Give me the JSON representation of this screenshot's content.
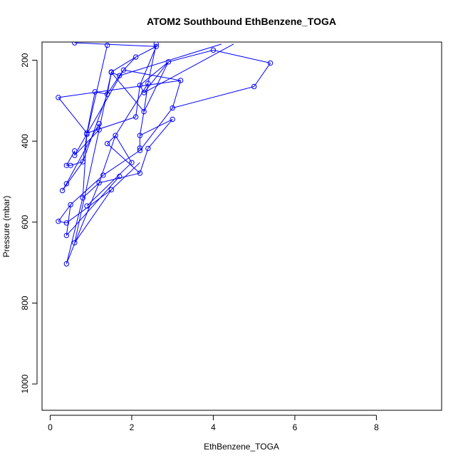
{
  "chart_data": {
    "type": "scatter",
    "title": "ATOM2 Southbound EthBenzene_TOGA",
    "xlabel": "EthBenzene_TOGA",
    "ylabel": "Pressure (mbar)",
    "xlim": [
      -0.2,
      9.6
    ],
    "ylim": [
      1065,
      155
    ],
    "y_reversed": true,
    "xticks": [
      0,
      2,
      4,
      6,
      8
    ],
    "yticks": [
      200,
      400,
      600,
      800,
      1000
    ],
    "grid": false,
    "legend": "none",
    "series_color": "#0000ff",
    "marker": "open-circle",
    "points": [
      [
        0.4,
        703
      ],
      [
        0.6,
        651
      ],
      [
        0.8,
        540
      ],
      [
        1.2,
        503
      ],
      [
        1.5,
        520
      ],
      [
        1.7,
        487
      ],
      [
        2.2,
        479
      ],
      [
        0.9,
        560
      ],
      [
        1.3,
        484
      ],
      [
        2.0,
        453
      ],
      [
        2.2,
        423
      ],
      [
        2.2,
        417
      ],
      [
        2.4,
        418
      ],
      [
        3.0,
        346
      ],
      [
        3.0,
        318
      ],
      [
        3.2,
        250
      ],
      [
        0.2,
        292
      ],
      [
        0.9,
        380
      ],
      [
        1.1,
        278
      ],
      [
        1.4,
        284
      ],
      [
        1.5,
        230
      ],
      [
        1.7,
        238
      ],
      [
        1.8,
        224
      ],
      [
        2.3,
        327
      ],
      [
        2.2,
        262
      ],
      [
        2.3,
        280
      ],
      [
        2.4,
        257
      ],
      [
        2.9,
        204
      ],
      [
        4.0,
        175
      ],
      [
        5.4,
        207
      ],
      [
        5.0,
        265
      ],
      [
        1.6,
        386
      ],
      [
        1.4,
        406
      ],
      [
        0.3,
        522
      ],
      [
        0.4,
        505
      ],
      [
        0.4,
        460
      ],
      [
        0.5,
        460
      ],
      [
        0.6,
        435
      ],
      [
        0.6,
        424
      ],
      [
        0.8,
        451
      ],
      [
        1.2,
        357
      ],
      [
        1.2,
        372
      ],
      [
        0.9,
        383
      ],
      [
        0.5,
        557
      ],
      [
        0.2,
        598
      ],
      [
        0.4,
        602
      ],
      [
        0.4,
        633
      ],
      [
        2.1,
        340
      ],
      [
        2.1,
        192
      ],
      [
        2.2,
        386
      ],
      [
        1.4,
        163
      ],
      [
        0.6,
        157
      ],
      [
        2.6,
        166
      ],
      [
        2.6,
        160
      ],
      [
        1.5,
        229
      ]
    ],
    "segments": [
      [
        [
          0.4,
          703
        ],
        [
          0.8,
          540
        ]
      ],
      [
        [
          0.8,
          540
        ],
        [
          1.2,
          503
        ]
      ],
      [
        [
          1.2,
          503
        ],
        [
          2.2,
          479
        ]
      ],
      [
        [
          0.6,
          651
        ],
        [
          1.5,
          520
        ]
      ],
      [
        [
          1.5,
          520
        ],
        [
          2.2,
          453
        ]
      ],
      [
        [
          0.9,
          560
        ],
        [
          2.0,
          453
        ]
      ],
      [
        [
          1.3,
          484
        ],
        [
          2.2,
          423
        ]
      ],
      [
        [
          2.0,
          453
        ],
        [
          1.6,
          386
        ]
      ],
      [
        [
          1.6,
          386
        ],
        [
          1.4,
          406
        ]
      ],
      [
        [
          2.2,
          417
        ],
        [
          2.2,
          386
        ]
      ],
      [
        [
          2.2,
          386
        ],
        [
          2.3,
          327
        ]
      ],
      [
        [
          2.3,
          327
        ],
        [
          2.4,
          257
        ]
      ],
      [
        [
          2.4,
          418
        ],
        [
          3.0,
          346
        ]
      ],
      [
        [
          2.2,
          423
        ],
        [
          3.0,
          318
        ]
      ],
      [
        [
          3.0,
          318
        ],
        [
          3.2,
          250
        ]
      ],
      [
        [
          3.2,
          250
        ],
        [
          0.2,
          292
        ]
      ],
      [
        [
          0.2,
          292
        ],
        [
          0.9,
          380
        ]
      ],
      [
        [
          0.9,
          380
        ],
        [
          1.1,
          278
        ]
      ],
      [
        [
          1.1,
          278
        ],
        [
          1.4,
          284
        ]
      ],
      [
        [
          1.4,
          284
        ],
        [
          1.5,
          230
        ]
      ],
      [
        [
          1.5,
          230
        ],
        [
          1.7,
          238
        ]
      ],
      [
        [
          1.7,
          238
        ],
        [
          1.8,
          224
        ]
      ],
      [
        [
          1.8,
          224
        ],
        [
          2.1,
          192
        ]
      ],
      [
        [
          2.1,
          192
        ],
        [
          2.6,
          166
        ]
      ],
      [
        [
          2.6,
          166
        ],
        [
          2.6,
          160
        ]
      ],
      [
        [
          2.3,
          280
        ],
        [
          2.2,
          262
        ]
      ],
      [
        [
          2.2,
          262
        ],
        [
          2.9,
          204
        ]
      ],
      [
        [
          2.9,
          204
        ],
        [
          2.3,
          280
        ]
      ],
      [
        [
          2.3,
          327
        ],
        [
          2.9,
          204
        ]
      ],
      [
        [
          2.9,
          204
        ],
        [
          4.0,
          175
        ]
      ],
      [
        [
          4.0,
          175
        ],
        [
          5.4,
          207
        ]
      ],
      [
        [
          5.4,
          207
        ],
        [
          5.0,
          265
        ]
      ],
      [
        [
          5.0,
          265
        ],
        [
          3.0,
          318
        ]
      ],
      [
        [
          0.3,
          522
        ],
        [
          0.4,
          505
        ]
      ],
      [
        [
          0.4,
          505
        ],
        [
          1.2,
          357
        ]
      ],
      [
        [
          1.2,
          357
        ],
        [
          1.2,
          372
        ]
      ],
      [
        [
          1.2,
          372
        ],
        [
          0.6,
          435
        ]
      ],
      [
        [
          0.6,
          435
        ],
        [
          0.6,
          424
        ]
      ],
      [
        [
          0.6,
          424
        ],
        [
          0.4,
          460
        ]
      ],
      [
        [
          0.4,
          460
        ],
        [
          0.5,
          460
        ]
      ],
      [
        [
          0.5,
          460
        ],
        [
          0.8,
          451
        ]
      ],
      [
        [
          0.8,
          451
        ],
        [
          0.9,
          383
        ]
      ],
      [
        [
          0.9,
          383
        ],
        [
          1.4,
          163
        ]
      ],
      [
        [
          0.2,
          598
        ],
        [
          0.5,
          557
        ]
      ],
      [
        [
          0.5,
          557
        ],
        [
          1.3,
          484
        ]
      ],
      [
        [
          0.4,
          602
        ],
        [
          1.5,
          520
        ]
      ],
      [
        [
          0.4,
          633
        ],
        [
          1.7,
          487
        ]
      ],
      [
        [
          0.6,
          651
        ],
        [
          1.2,
          372
        ]
      ],
      [
        [
          1.2,
          372
        ],
        [
          1.5,
          229
        ]
      ],
      [
        [
          1.5,
          229
        ],
        [
          2.1,
          192
        ]
      ],
      [
        [
          0.8,
          540
        ],
        [
          0.9,
          380
        ]
      ],
      [
        [
          0.9,
          380
        ],
        [
          2.1,
          340
        ]
      ],
      [
        [
          2.1,
          340
        ],
        [
          2.2,
          262
        ]
      ],
      [
        [
          2.2,
          262
        ],
        [
          2.6,
          166
        ]
      ],
      [
        [
          2.6,
          166
        ],
        [
          0.6,
          157
        ]
      ],
      [
        [
          1.4,
          406
        ],
        [
          2.2,
          479
        ]
      ],
      [
        [
          2.2,
          386
        ],
        [
          3.0,
          346
        ]
      ],
      [
        [
          0.4,
          703
        ],
        [
          1.2,
          503
        ]
      ],
      [
        [
          1.2,
          503
        ],
        [
          1.6,
          386
        ]
      ],
      [
        [
          1.6,
          386
        ],
        [
          2.4,
          257
        ]
      ],
      [
        [
          2.4,
          257
        ],
        [
          2.6,
          160
        ]
      ],
      [
        [
          0.6,
          435
        ],
        [
          1.8,
          224
        ]
      ],
      [
        [
          1.8,
          224
        ],
        [
          3.2,
          250
        ]
      ],
      [
        [
          0.3,
          522
        ],
        [
          0.8,
          451
        ]
      ],
      [
        [
          0.8,
          451
        ],
        [
          1.4,
          284
        ]
      ],
      [
        [
          1.4,
          284
        ],
        [
          1.7,
          238
        ]
      ],
      [
        [
          1.7,
          238
        ],
        [
          4.2,
          160
        ]
      ],
      [
        [
          2.4,
          418
        ],
        [
          2.2,
          479
        ]
      ],
      [
        [
          0.2,
          598
        ],
        [
          0.4,
          602
        ]
      ],
      [
        [
          0.4,
          633
        ],
        [
          0.5,
          557
        ]
      ],
      [
        [
          1.5,
          230
        ],
        [
          2.3,
          327
        ]
      ],
      [
        [
          2.3,
          280
        ],
        [
          4.5,
          160
        ]
      ]
    ]
  }
}
